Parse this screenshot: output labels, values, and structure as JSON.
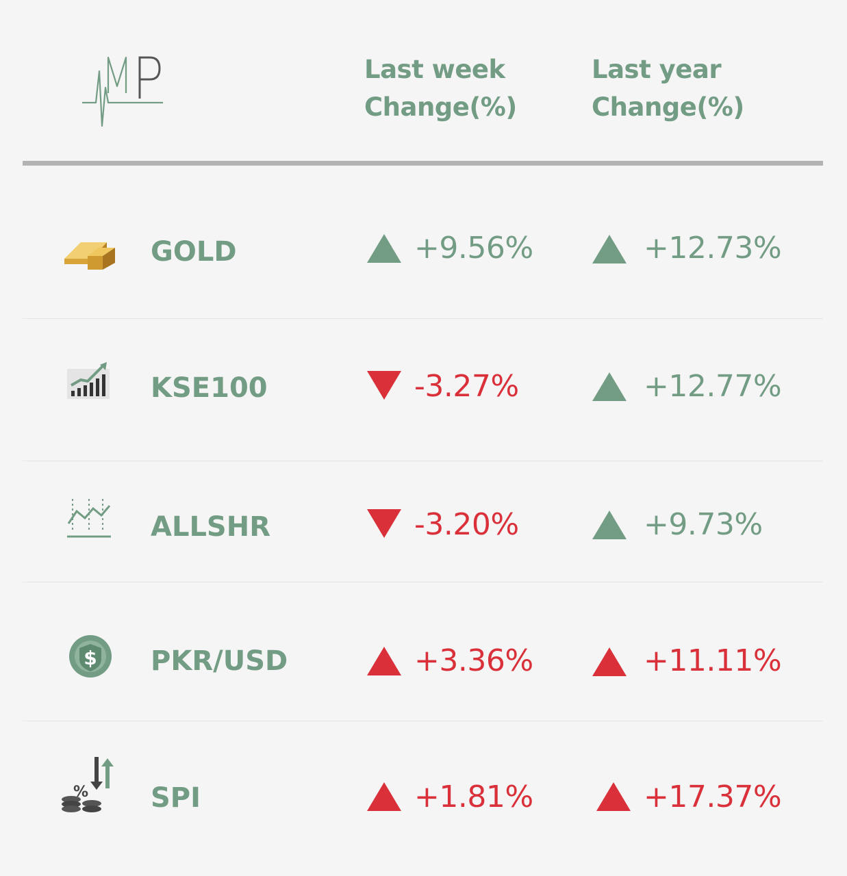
{
  "header": {
    "week_line1": "Last week",
    "week_line2": "Change(%)",
    "year_line1": "Last year",
    "year_line2": "Change(%)"
  },
  "colors": {
    "up_green": "#739c84",
    "red": "#d9303a",
    "label_green": "#739c84"
  },
  "rows": [
    {
      "label": "GOLD",
      "icon": "gold-bar-icon",
      "week": {
        "value": "+9.56%",
        "direction": "up",
        "color": "#739c84"
      },
      "year": {
        "value": "+12.73%",
        "direction": "up",
        "color": "#739c84"
      }
    },
    {
      "label": "KSE100",
      "icon": "bar-chart-growth-icon",
      "week": {
        "value": "-3.27%",
        "direction": "down",
        "color": "#d9303a"
      },
      "year": {
        "value": "+12.77%",
        "direction": "up",
        "color": "#739c84"
      }
    },
    {
      "label": "ALLSHR",
      "icon": "line-chart-icon",
      "week": {
        "value": "-3.20%",
        "direction": "down",
        "color": "#d9303a"
      },
      "year": {
        "value": "+9.73%",
        "direction": "up",
        "color": "#739c84"
      }
    },
    {
      "label": "PKR/USD",
      "icon": "dollar-coin-icon",
      "week": {
        "value": "+3.36%",
        "direction": "up",
        "color": "#d9303a"
      },
      "year": {
        "value": "+11.11%",
        "direction": "up",
        "color": "#d9303a"
      }
    },
    {
      "label": "SPI",
      "icon": "percent-coins-icon",
      "week": {
        "value": "+1.81%",
        "direction": "up",
        "color": "#d9303a"
      },
      "year": {
        "value": "+17.37%",
        "direction": "up",
        "color": "#d9303a"
      }
    }
  ]
}
